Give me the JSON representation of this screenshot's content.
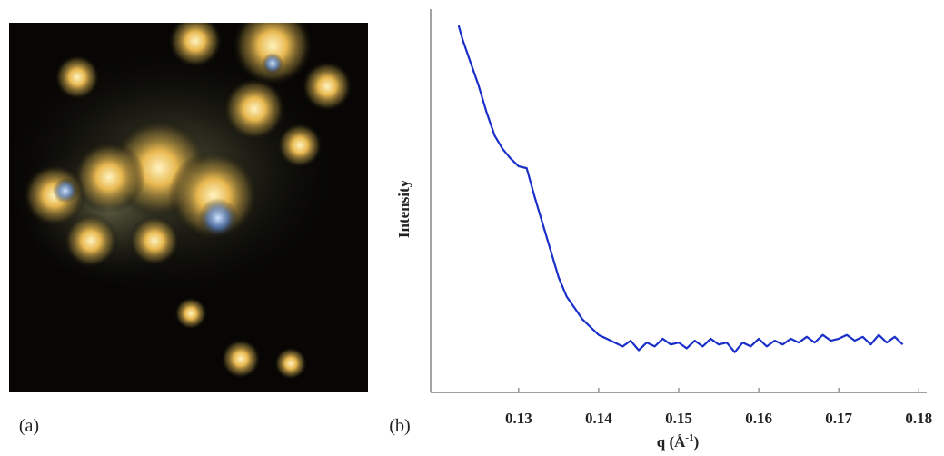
{
  "panel_labels": [
    "(a)",
    "(b)"
  ],
  "chart_data": {
    "type": "line",
    "xlabel": [
      "q (Å",
      "-1",
      ")"
    ],
    "ylabel": "Intensity",
    "xlim": [
      0.119,
      0.181
    ],
    "ylim": [
      0,
      100
    ],
    "xticks": [
      0.13,
      0.14,
      0.15,
      0.16,
      0.17,
      0.18
    ],
    "color": "#1a2fc8",
    "x": [
      0.1225,
      0.123,
      0.124,
      0.125,
      0.126,
      0.127,
      0.128,
      0.129,
      0.13,
      0.131,
      0.132,
      0.133,
      0.134,
      0.135,
      0.136,
      0.137,
      0.138,
      0.139,
      0.14,
      0.141,
      0.142,
      0.143,
      0.144,
      0.145,
      0.146,
      0.147,
      0.148,
      0.149,
      0.15,
      0.151,
      0.152,
      0.153,
      0.154,
      0.155,
      0.156,
      0.157,
      0.158,
      0.159,
      0.16,
      0.161,
      0.162,
      0.163,
      0.164,
      0.165,
      0.166,
      0.167,
      0.168,
      0.169,
      0.17,
      0.171,
      0.172,
      0.173,
      0.174,
      0.175,
      0.176,
      0.177,
      0.178
    ],
    "values": [
      95.7,
      92,
      86,
      80,
      73,
      67,
      63.5,
      61,
      59,
      58.5,
      51,
      44,
      37,
      30,
      25,
      22,
      19,
      17,
      15,
      14,
      13,
      12,
      13.5,
      11,
      13,
      12,
      14,
      12.5,
      13,
      11.5,
      13.5,
      12,
      14,
      12.5,
      13,
      10.5,
      13,
      12,
      14,
      12,
      13.5,
      12.5,
      14,
      13,
      14.5,
      13,
      15,
      13.5,
      14,
      15,
      13.5,
      14.5,
      12.5,
      15,
      13,
      14.5,
      12.5
    ]
  }
}
